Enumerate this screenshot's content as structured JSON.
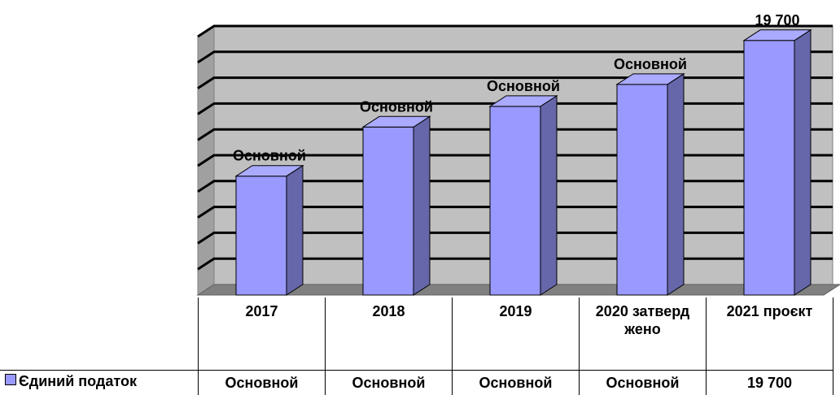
{
  "chart_data": {
    "type": "bar3d",
    "categories": [
      "2017",
      "2018",
      "2019",
      "2020 затверджено",
      "2021 проєкт"
    ],
    "series": [
      {
        "name": "Єдиний податок",
        "color": "#9999ff",
        "values": [
          9200,
          13000,
          14600,
          16300,
          19700
        ],
        "value_labels": [
          "Основной",
          "Основной",
          "Основной",
          "Основной",
          "19 700"
        ]
      }
    ],
    "ylim": [
      0,
      20000
    ],
    "yticks": [
      0,
      2000,
      4000,
      6000,
      8000,
      10000,
      12000,
      14000,
      16000,
      18000,
      20000
    ],
    "grid": true,
    "legend": "bottom"
  }
}
